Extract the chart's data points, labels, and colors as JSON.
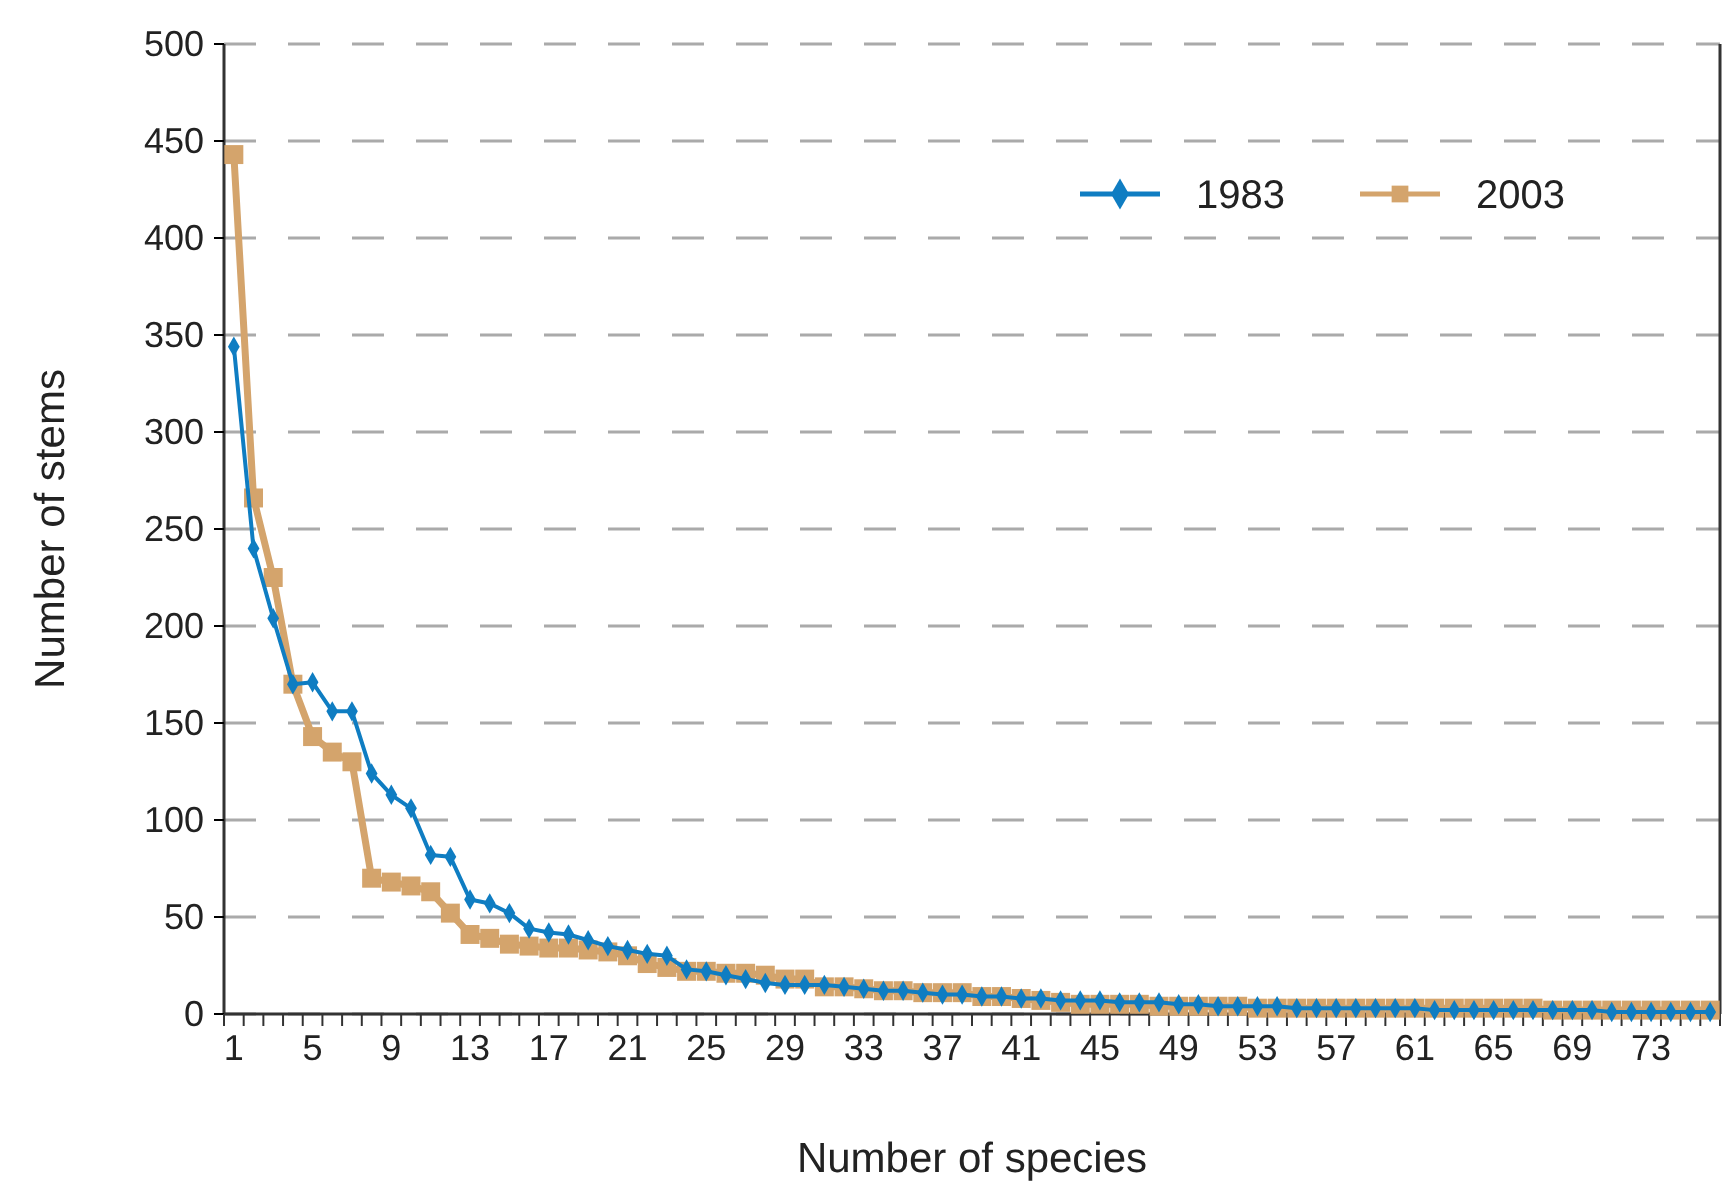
{
  "chart_data": {
    "type": "line",
    "xlabel": "Number of species",
    "ylabel": "Number of stems",
    "categories": [
      "1",
      null,
      null,
      null,
      "5",
      null,
      null,
      null,
      "9",
      null,
      null,
      null,
      "13",
      null,
      null,
      null,
      "17",
      null,
      null,
      null,
      "21",
      null,
      null,
      null,
      "25",
      null,
      null,
      null,
      "29",
      null,
      null,
      null,
      "33",
      null,
      null,
      null,
      "37",
      null,
      null,
      null,
      "41",
      null,
      null,
      null,
      "45",
      null,
      null,
      null,
      "49",
      null,
      null,
      null,
      "53",
      null,
      null,
      null,
      "57",
      null,
      null,
      null,
      "61",
      null,
      null,
      null,
      "65",
      null,
      null,
      null,
      "69",
      null,
      null,
      null,
      "73",
      null,
      null,
      null
    ],
    "series": [
      {
        "name": "1983",
        "color": "#0f7dc2",
        "marker": "diamond",
        "values": [
          344,
          240,
          204,
          170,
          171,
          156,
          156,
          124,
          113,
          106,
          82,
          81,
          59,
          57,
          52,
          44,
          42,
          41,
          38,
          35,
          33,
          31,
          30,
          23,
          22,
          20,
          18,
          16,
          15,
          15,
          15,
          14,
          13,
          12,
          12,
          11,
          10,
          10,
          9,
          9,
          8,
          8,
          7,
          7,
          7,
          6,
          6,
          6,
          5,
          5,
          4,
          4,
          4,
          4,
          3,
          3,
          3,
          3,
          3,
          3,
          3,
          2,
          2,
          2,
          2,
          2,
          2,
          2,
          2,
          2,
          1,
          1,
          1,
          1,
          1,
          1
        ]
      },
      {
        "name": "2003",
        "color": "#d4a46c",
        "marker": "square",
        "values": [
          443,
          266,
          225,
          170,
          143,
          135,
          130,
          70,
          68,
          66,
          63,
          52,
          41,
          39,
          36,
          35,
          34,
          34,
          33,
          32,
          30,
          26,
          24,
          22,
          22,
          21,
          21,
          20,
          18,
          18,
          14,
          14,
          13,
          12,
          12,
          11,
          11,
          11,
          9,
          9,
          8,
          7,
          6,
          5,
          5,
          5,
          5,
          4,
          4,
          4,
          4,
          4,
          3,
          3,
          3,
          3,
          3,
          3,
          3,
          3,
          3,
          3,
          3,
          3,
          3,
          3,
          3,
          2,
          2,
          2,
          2,
          2,
          2,
          2,
          2,
          2
        ]
      }
    ],
    "ylim": [
      0,
      500
    ],
    "yticks": [
      0,
      50,
      100,
      150,
      200,
      250,
      300,
      350,
      400,
      450,
      500
    ],
    "grid": "y",
    "legend": "top right",
    "line_style": "solid"
  }
}
